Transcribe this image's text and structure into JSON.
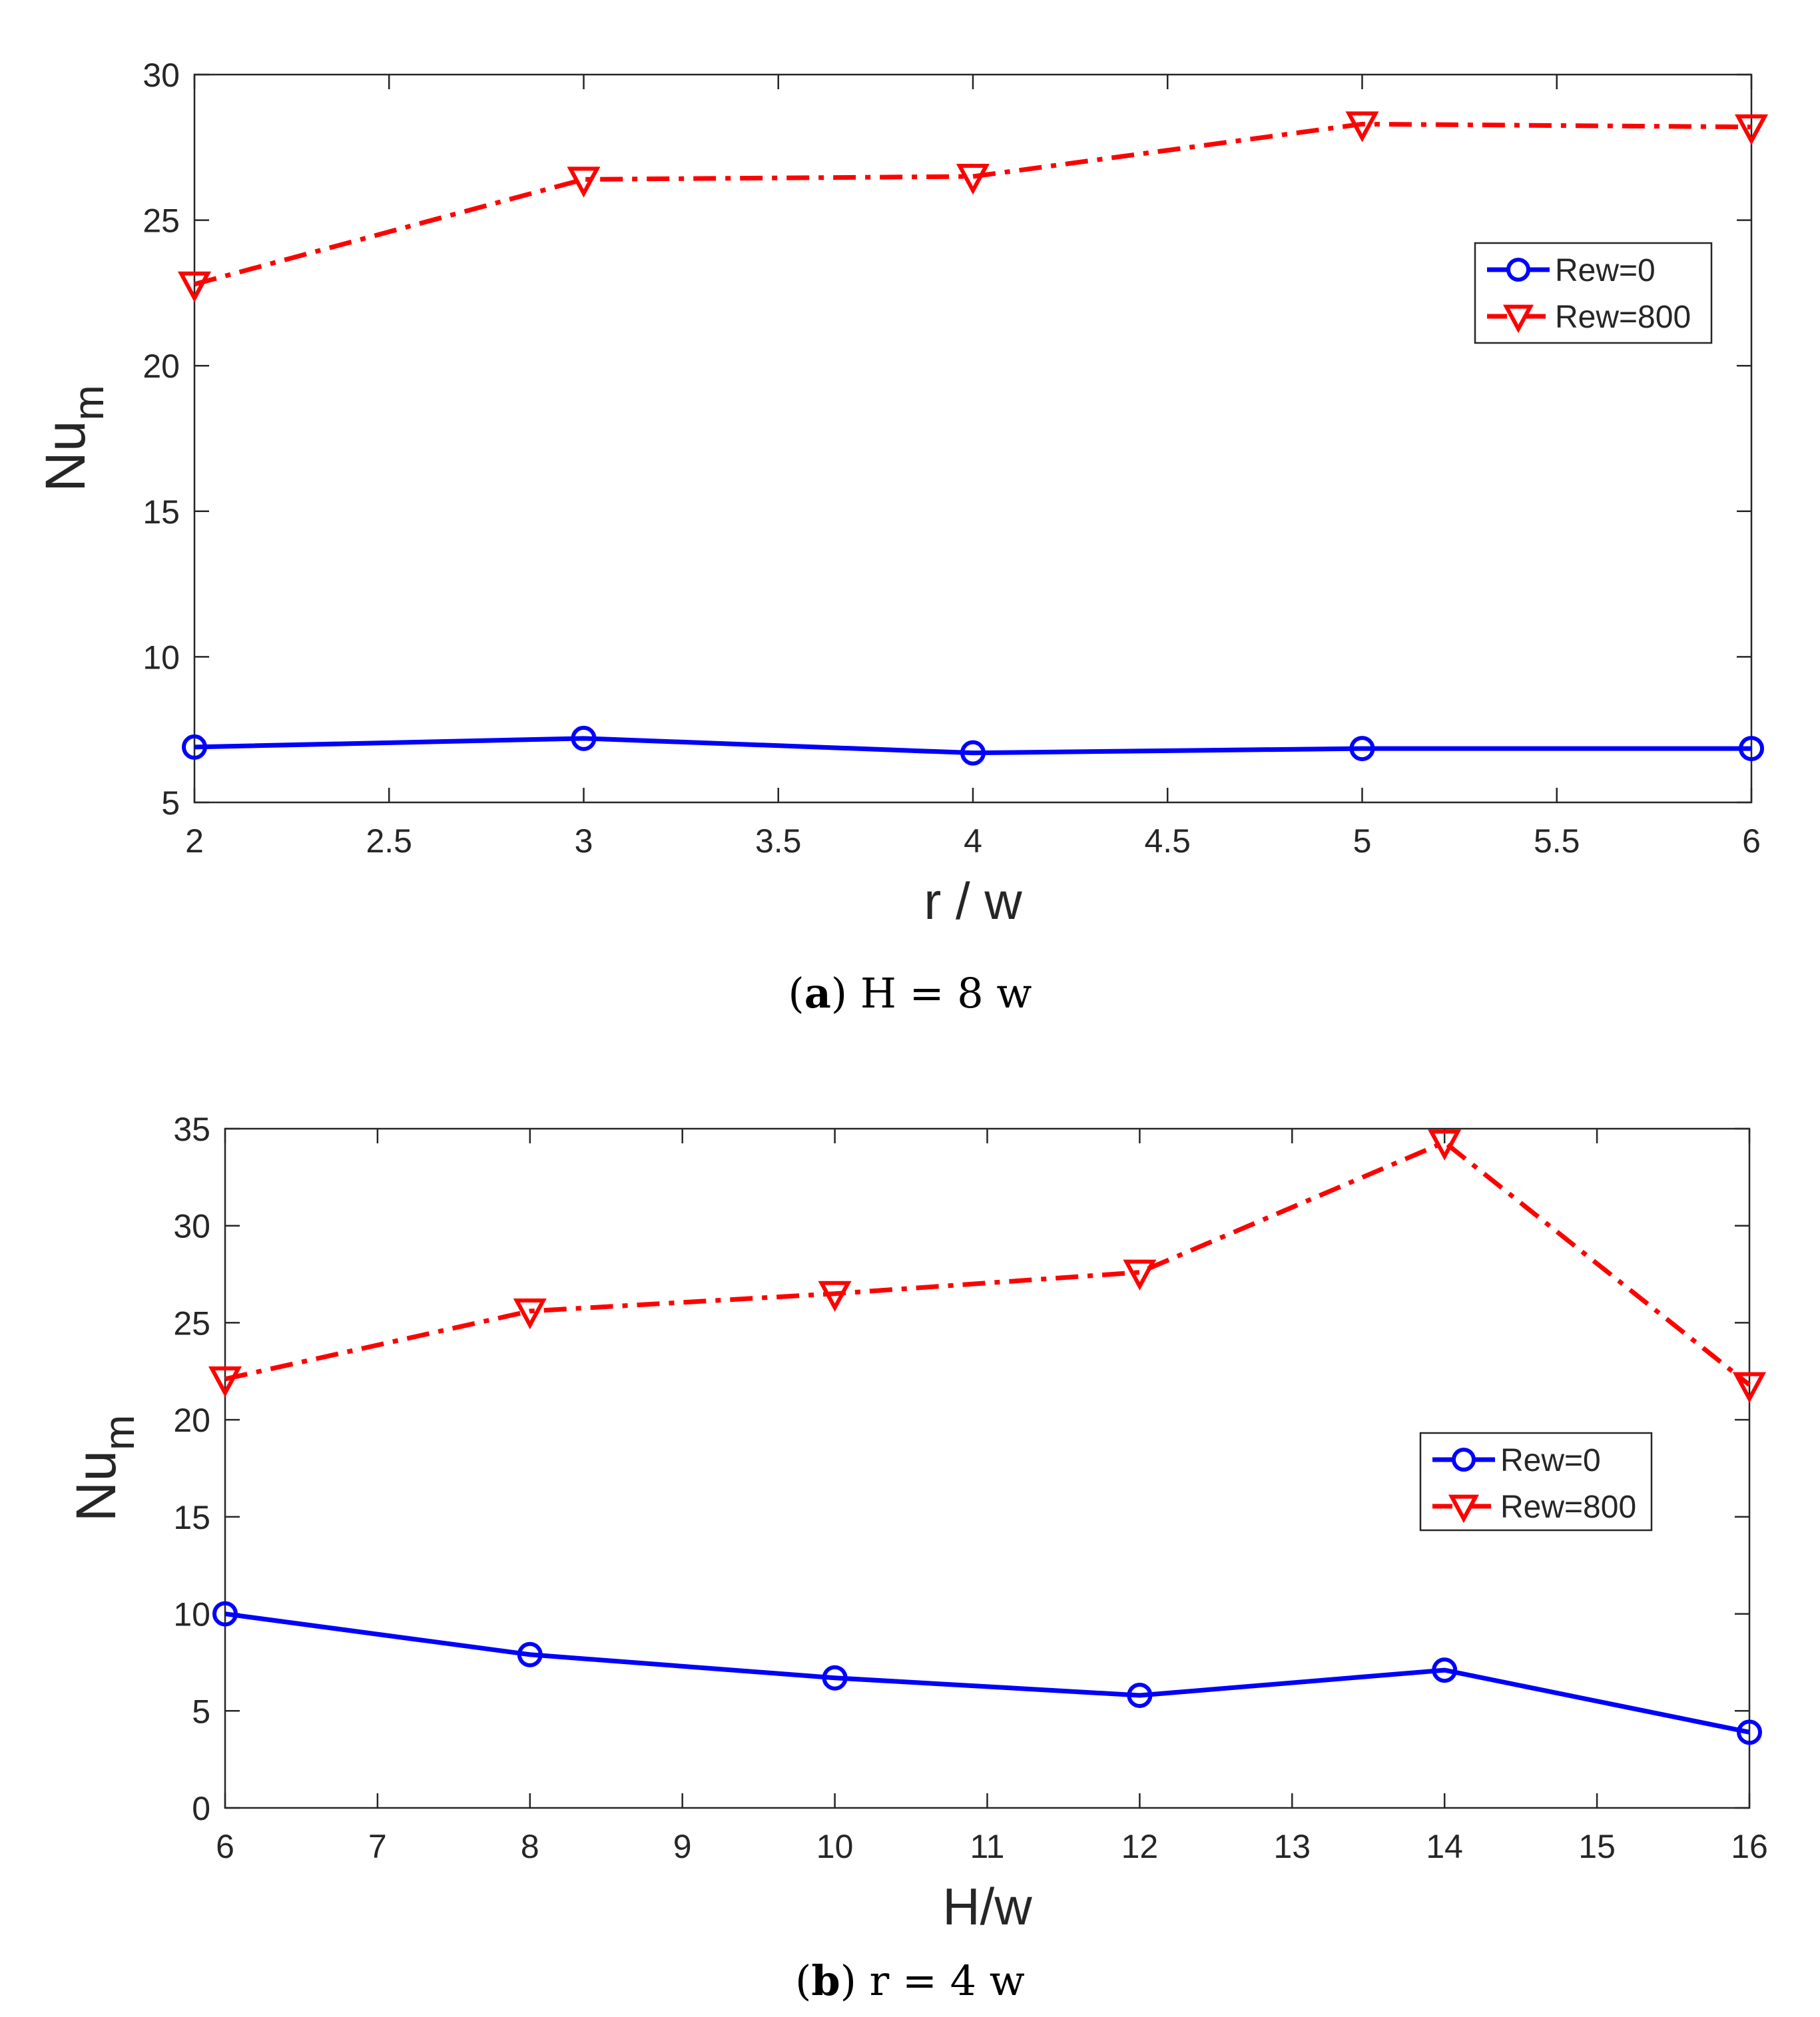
{
  "chart_data": [
    {
      "type": "line",
      "panel": "a",
      "caption_label": "a",
      "caption_text": "H = 8 w",
      "xlabel": "r / w",
      "ylabel": "Nu",
      "ylabel_sub": "m",
      "xlim": [
        2,
        6
      ],
      "ylim": [
        5,
        30
      ],
      "xticks": [
        2,
        2.5,
        3,
        3.5,
        4,
        4.5,
        5,
        5.5,
        6
      ],
      "yticks": [
        5,
        10,
        15,
        20,
        25,
        30
      ],
      "legend_position": "upper-right",
      "x": [
        2,
        3,
        4,
        5,
        6
      ],
      "series": [
        {
          "name": "Rew=0",
          "color": "#0000ff",
          "style": "solid",
          "marker": "circle",
          "values": [
            6.9,
            7.2,
            6.7,
            6.85,
            6.85
          ]
        },
        {
          "name": "Rew=800",
          "color": "#ff0000",
          "style": "dashdot",
          "marker": "triangle-down",
          "values": [
            22.8,
            26.4,
            26.5,
            28.3,
            28.2
          ]
        }
      ]
    },
    {
      "type": "line",
      "panel": "b",
      "caption_label": "b",
      "caption_text": "r = 4 w",
      "xlabel": "H/w",
      "ylabel": "Nu",
      "ylabel_sub": "m",
      "xlim": [
        6,
        16
      ],
      "ylim": [
        0,
        35
      ],
      "xticks": [
        6,
        7,
        8,
        9,
        10,
        11,
        12,
        13,
        14,
        15,
        16
      ],
      "yticks": [
        0,
        5,
        10,
        15,
        20,
        25,
        30,
        35
      ],
      "legend_position": "center-right",
      "x": [
        6,
        8,
        10,
        12,
        14,
        16
      ],
      "series": [
        {
          "name": "Rew=0",
          "color": "#0000ff",
          "style": "solid",
          "marker": "circle",
          "values": [
            10.0,
            7.9,
            6.7,
            5.8,
            7.1,
            3.9
          ]
        },
        {
          "name": "Rew=800",
          "color": "#ff0000",
          "style": "dashdot",
          "marker": "triangle-down",
          "values": [
            22.1,
            25.6,
            26.5,
            27.6,
            34.3,
            21.8
          ]
        }
      ]
    }
  ]
}
